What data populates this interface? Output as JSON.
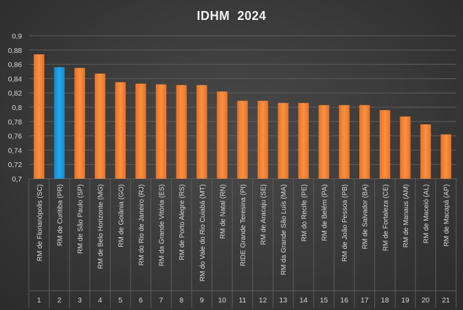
{
  "chart_data": {
    "type": "bar",
    "title": "IDHM  2024",
    "xlabel": "",
    "ylabel": "",
    "ylim": [
      0.7,
      0.9
    ],
    "yticks": [
      "0,7",
      "0,72",
      "0,74",
      "0,76",
      "0,78",
      "0,8",
      "0,82",
      "0,84",
      "0,86",
      "0,88",
      "0,9"
    ],
    "grid": true,
    "legend": "none",
    "categories": [
      "RM de Florianópolis (SC)",
      "RM de Curitiba (PR)",
      "RM de São Paulo (SP)",
      "RM de Belo Horizonte (MG)",
      "RM de Goiânia (GO)",
      "RM do Rio de Janeiro (RJ)",
      "RM da Grande Vitória (ES)",
      "RM de Porto Alegre (RS)",
      "RM do Vale do Rio Cuiabá (MT)",
      "RM de Natal (RN)",
      "RIDE Grande Teresina (PI)",
      "RM de Aracaju (SE)",
      "RM da Grande São Luís (MA)",
      "RM do Recife (PE)",
      "RM de Belém (PA)",
      "RM de João Pessoa (PB)",
      "RM de Salvador (BA)",
      "RM de Fortaleza (CE)",
      "RM de Manaus (AM)",
      "RM de Maceió (AL)",
      "RM de Macapá (AP)"
    ],
    "ranks": [
      "1",
      "2",
      "3",
      "4",
      "5",
      "6",
      "7",
      "8",
      "9",
      "10",
      "11",
      "12",
      "13",
      "14",
      "15",
      "16",
      "17",
      "18",
      "19",
      "20",
      "21"
    ],
    "values": [
      0.874,
      0.856,
      0.855,
      0.847,
      0.835,
      0.833,
      0.832,
      0.831,
      0.831,
      0.822,
      0.809,
      0.809,
      0.806,
      0.806,
      0.803,
      0.803,
      0.803,
      0.796,
      0.787,
      0.776,
      0.762
    ],
    "highlight_index": 1,
    "colors": {
      "bar": "#f58230",
      "highlight": "#1a9be0",
      "grid": "#5e5e5e",
      "text": "#d9d9d9"
    }
  }
}
